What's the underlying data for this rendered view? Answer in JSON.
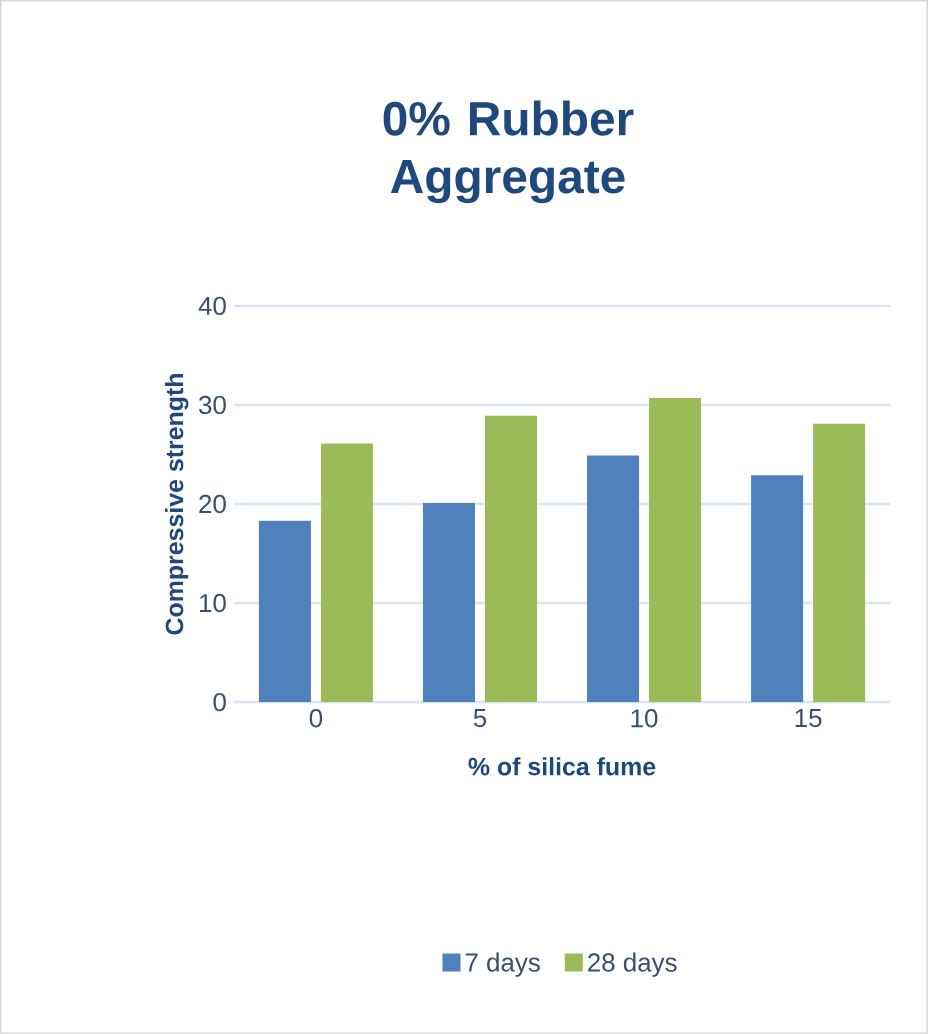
{
  "chart_data": {
    "type": "bar",
    "title": "0% Rubber Aggregate",
    "xlabel": "% of silica fume",
    "ylabel": "Compressive strength",
    "categories": [
      "0",
      "5",
      "10",
      "15"
    ],
    "series": [
      {
        "name": "7 days",
        "color": "#4f81bd",
        "values": [
          18.3,
          20.1,
          24.9,
          22.9
        ]
      },
      {
        "name": "28 days",
        "color": "#9bbb59",
        "values": [
          26.1,
          28.9,
          30.7,
          28.1
        ]
      }
    ],
    "ylim": [
      0,
      40
    ],
    "yticks": [
      0,
      10,
      20,
      30,
      40
    ],
    "grid": "y",
    "legend": "bottom"
  }
}
